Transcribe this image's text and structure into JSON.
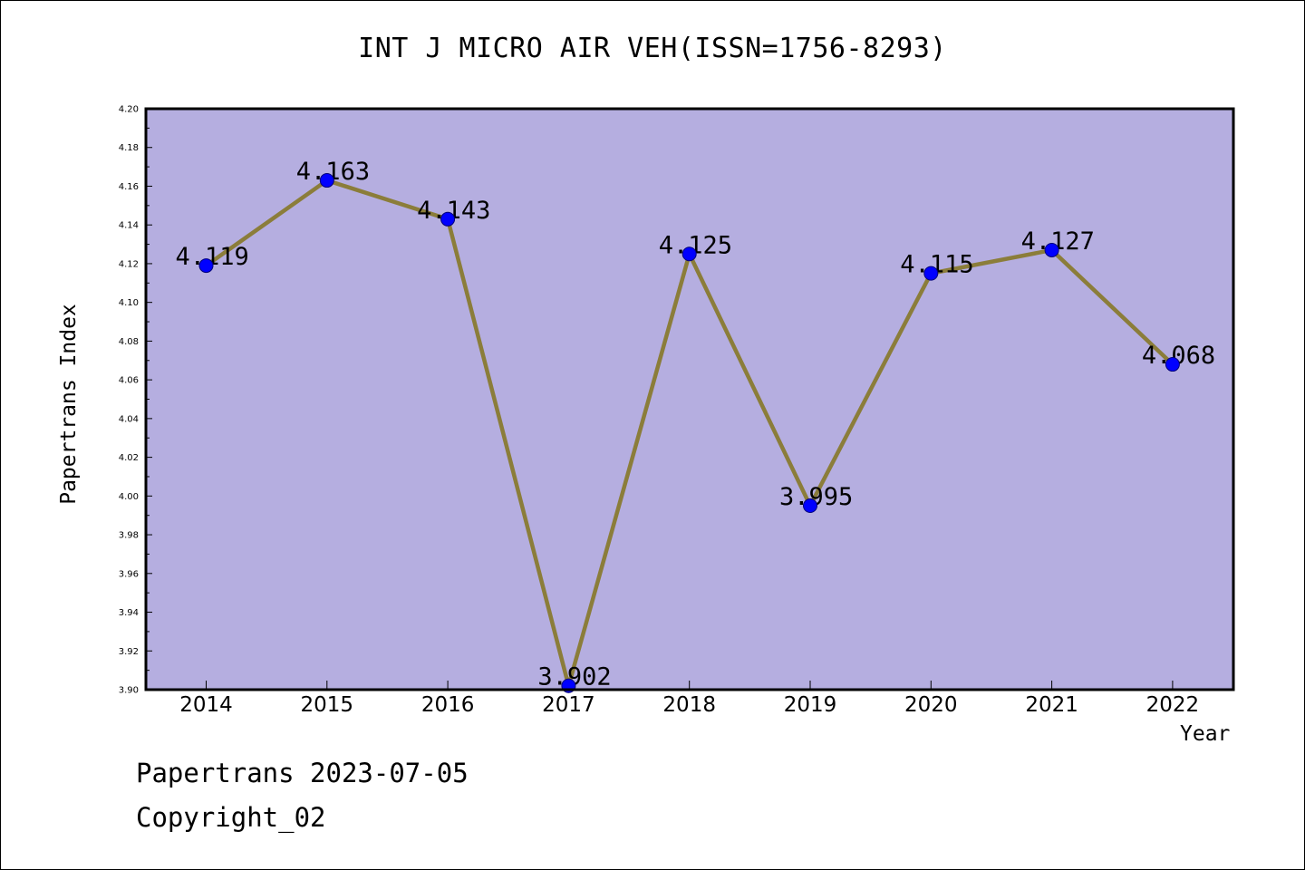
{
  "chart_data": {
    "type": "line",
    "title": "INT J MICRO AIR VEH(ISSN=1756-8293)",
    "xlabel": "Year",
    "ylabel": "Papertrans Index",
    "categories": [
      "2014",
      "2015",
      "2016",
      "2017",
      "2018",
      "2019",
      "2020",
      "2021",
      "2022"
    ],
    "values": [
      4.119,
      4.163,
      4.143,
      3.902,
      4.125,
      3.995,
      4.115,
      4.127,
      4.068
    ],
    "data_labels": [
      "4.119",
      "4.163",
      "4.143",
      "3.902",
      "4.125",
      "3.995",
      "4.115",
      "4.127",
      "4.068"
    ],
    "ylim": [
      3.9,
      4.2
    ],
    "yticks": [
      "3.90",
      "3.92",
      "3.94",
      "3.96",
      "3.98",
      "4.00",
      "4.02",
      "4.04",
      "4.06",
      "4.08",
      "4.10",
      "4.12",
      "4.14",
      "4.16",
      "4.18",
      "4.20"
    ],
    "grid": false,
    "colors": {
      "plot_background": "#b5aee0",
      "line": "#8b7d3a",
      "marker": "#0000ff"
    }
  },
  "footer": {
    "line1": "Papertrans 2023-07-05",
    "line2": "Copyright_02"
  }
}
